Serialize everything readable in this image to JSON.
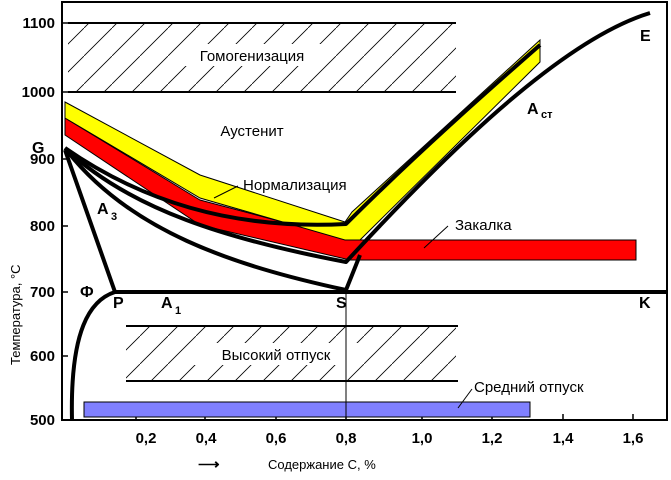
{
  "axes": {
    "y_label": "Температура, °C",
    "x_label": "Содержание С, %",
    "x_arrow": "⟶",
    "y_ticks": [
      "500",
      "600",
      "700",
      "800",
      "900",
      "1000",
      "1100"
    ],
    "x_ticks": [
      "0,2",
      "0,4",
      "0,6",
      "0,8",
      "1,0",
      "1,2",
      "1,4",
      "1,6"
    ]
  },
  "regions": {
    "homogenization": "Гомогенизация",
    "austenite": "Аустенит",
    "high_tempering": "Высокий отпуск",
    "medium_tempering": "Средний отпуск"
  },
  "processes": {
    "normalization": "Нормализация",
    "hardening": "Закалка"
  },
  "points": {
    "G": "G",
    "E": "E",
    "P": "P",
    "S": "S",
    "K": "K",
    "phi": "Ф",
    "A3_main": "A",
    "A3_sub": "3",
    "A1_main": "A",
    "A1_sub": "1",
    "Acm_main": "A",
    "Acm_sub": "ст"
  },
  "colors": {
    "normalization_band": "#ffff00",
    "hardening_band": "#ff0000",
    "medium_tempering_band": "#8080ff",
    "lines": "#000000"
  }
}
